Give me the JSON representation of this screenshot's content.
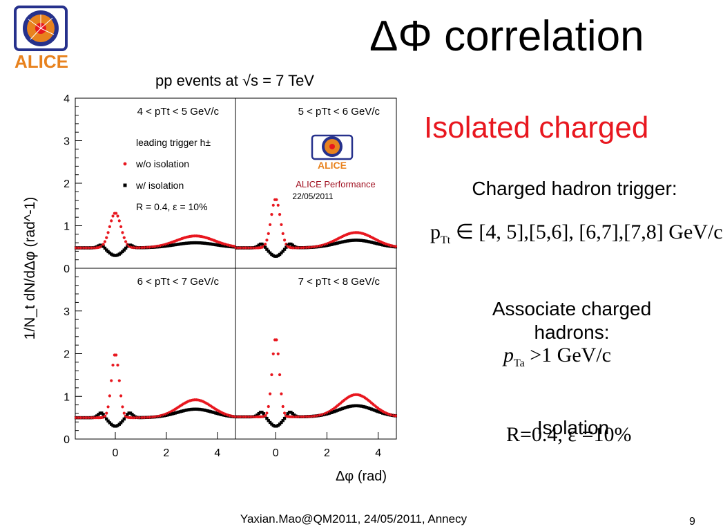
{
  "slide": {
    "title": "ΔΦ correlation",
    "subtitle": "Isolated  charged",
    "trigger_heading": "Charged hadron trigger:",
    "trigger_formula_var": "p",
    "trigger_formula_sub": "Tt",
    "trigger_formula_rest": "∈  [4, 5],[5,6], [6,7],[7,8] GeV/c",
    "associate_heading": "Associate charged hadrons:",
    "associate_formula_var": "p",
    "associate_formula_sub": "Ta",
    "associate_formula_rest": ">1 GeV/c",
    "isolation_heading": "Isolation",
    "isolation_formula": "R=0.4, ε =10%",
    "footer": "Yaxian.Mao@QM2011, 24/05/2011, Annecy",
    "page_number": "9",
    "logo_text": "ALICE",
    "colors": {
      "title": "#000000",
      "subtitle": "#e8171f",
      "logo_orange": "#e8821e",
      "logo_blue": "#26318c"
    }
  },
  "chart_data": {
    "type": "scatter",
    "title": "pp events at √s = 7 TeV",
    "xlabel": "Δφ (rad)",
    "ylabel": "1/N_t dN/dΔφ (rad^-1)",
    "xlim": [
      -1.57,
      4.71
    ],
    "ylim": [
      0,
      4
    ],
    "x_ticks": [
      0,
      2,
      4
    ],
    "y_ticks": [
      0,
      1,
      2,
      3,
      4
    ],
    "legend": {
      "header": "leading trigger h±",
      "entries": [
        "w/o isolation",
        "w/ isolation"
      ],
      "note": "R = 0.4, ε = 10%",
      "location": "top panel, upper-left"
    },
    "performance_label": "ALICE Performance",
    "performance_date": "22/05/2011",
    "series": [
      {
        "name": "w/o isolation",
        "color": "#e8171f",
        "marker": "circle"
      },
      {
        "name": "w/ isolation",
        "color": "#000000",
        "marker": "square"
      }
    ],
    "panels": [
      {
        "label": "4 < pTt < 5 GeV/c",
        "no_iso": {
          "base": 0.48,
          "near_peak": 0.82,
          "near_width": 0.22,
          "away_peak": 0.28,
          "away_width": 0.75
        },
        "iso": {
          "base": 0.48,
          "dip": 0.18,
          "dip_width": 0.25,
          "shoulder": 0.08,
          "away_peak": 0.12,
          "away_width": 0.8
        }
      },
      {
        "label": "5 < pTt < 6 GeV/c",
        "no_iso": {
          "base": 0.48,
          "near_peak": 1.15,
          "near_width": 0.18,
          "away_peak": 0.36,
          "away_width": 0.7
        },
        "iso": {
          "base": 0.48,
          "dip": 0.2,
          "dip_width": 0.22,
          "shoulder": 0.1,
          "away_peak": 0.18,
          "away_width": 0.75
        }
      },
      {
        "label": "6 < pTt < 7 GeV/c",
        "no_iso": {
          "base": 0.5,
          "near_peak": 1.5,
          "near_width": 0.15,
          "away_peak": 0.42,
          "away_width": 0.65
        },
        "iso": {
          "base": 0.5,
          "dip": 0.2,
          "dip_width": 0.22,
          "shoulder": 0.12,
          "away_peak": 0.2,
          "away_width": 0.72
        }
      },
      {
        "label": "7 < pTt < 8 GeV/c",
        "no_iso": {
          "base": 0.52,
          "near_peak": 1.85,
          "near_width": 0.14,
          "away_peak": 0.52,
          "away_width": 0.62
        },
        "iso": {
          "base": 0.52,
          "dip": 0.22,
          "dip_width": 0.22,
          "shoulder": 0.12,
          "away_peak": 0.26,
          "away_width": 0.7
        }
      }
    ]
  }
}
